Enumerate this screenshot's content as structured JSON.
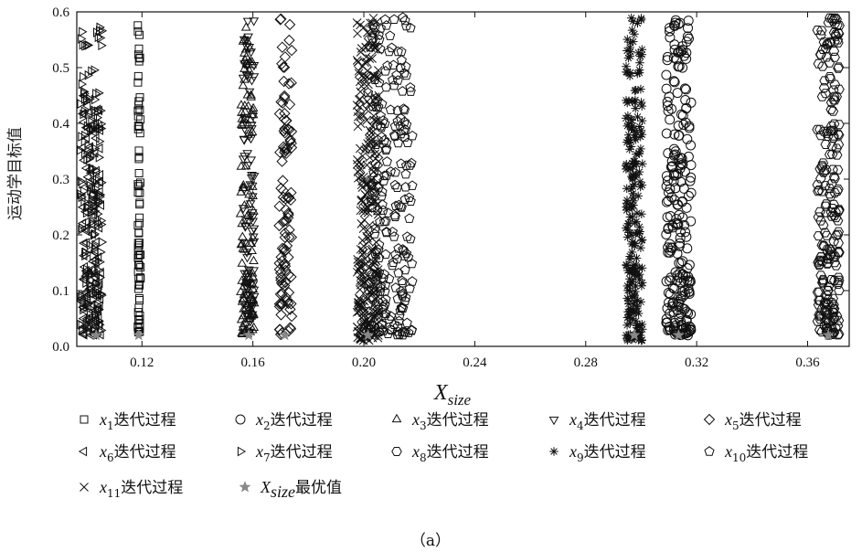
{
  "chart_data": {
    "type": "scatter",
    "title": "",
    "xlabel": {
      "main": "X",
      "sub": "size"
    },
    "ylabel": "运动学目标值",
    "xlim": [
      0.0965,
      0.375
    ],
    "ylim": [
      0,
      0.6
    ],
    "x_ticks": [
      0.12,
      0.16,
      0.2,
      0.24,
      0.28,
      0.32,
      0.36
    ],
    "x_tick_labels": [
      "0.12",
      "0.16",
      "0.20",
      "0.24",
      "0.28",
      "0.32",
      "0.36"
    ],
    "y_ticks": [
      0.0,
      0.1,
      0.2,
      0.3,
      0.4,
      0.5,
      0.6
    ],
    "y_tick_labels": [
      "0.0",
      "0.1",
      "0.2",
      "0.3",
      "0.4",
      "0.5",
      "0.6"
    ],
    "grid": false,
    "legend_placement": "bottom",
    "series": [
      {
        "name": "x1迭代过程",
        "var": "x",
        "sub": "1",
        "suffix": "迭代过程",
        "marker": "square",
        "x_range": [
          0.1185,
          0.1195
        ],
        "y_range": [
          0.02,
          0.59
        ],
        "count": 70,
        "seed": 11
      },
      {
        "name": "x2迭代过程",
        "var": "x",
        "sub": "2",
        "suffix": "迭代过程",
        "marker": "circle",
        "x_range": [
          0.309,
          0.318
        ],
        "y_range": [
          0.02,
          0.59
        ],
        "count": 230,
        "seed": 22
      },
      {
        "name": "x3迭代过程",
        "var": "x",
        "sub": "3",
        "suffix": "迭代过程",
        "marker": "triangle-up",
        "x_range": [
          0.1555,
          0.1605
        ],
        "y_range": [
          0.02,
          0.59
        ],
        "count": 110,
        "seed": 33
      },
      {
        "name": "x4迭代过程",
        "var": "x",
        "sub": "4",
        "suffix": "迭代过程",
        "marker": "triangle-down",
        "x_range": [
          0.1565,
          0.1605
        ],
        "y_range": [
          0.02,
          0.59
        ],
        "count": 90,
        "seed": 44
      },
      {
        "name": "x5迭代过程",
        "var": "x",
        "sub": "5",
        "suffix": "迭代过程",
        "marker": "diamond",
        "x_range": [
          0.1695,
          0.174
        ],
        "y_range": [
          0.02,
          0.59
        ],
        "count": 110,
        "seed": 55
      },
      {
        "name": "x6迭代过程",
        "var": "x",
        "sub": "6",
        "suffix": "迭代过程",
        "marker": "triangle-left",
        "x_range": [
          0.0985,
          0.1055
        ],
        "y_range": [
          0.02,
          0.45
        ],
        "count": 130,
        "seed": 66
      },
      {
        "name": "x7迭代过程",
        "var": "x",
        "sub": "7",
        "suffix": "迭代过程",
        "marker": "triangle-right",
        "x_range": [
          0.0975,
          0.1055
        ],
        "y_range": [
          0.02,
          0.58
        ],
        "count": 150,
        "seed": 77
      },
      {
        "name": "x8迭代过程",
        "var": "x",
        "sub": "8",
        "suffix": "迭代过程",
        "marker": "hexagon",
        "x_range": [
          0.3635,
          0.3715
        ],
        "y_range": [
          0.02,
          0.59
        ],
        "count": 230,
        "seed": 88
      },
      {
        "name": "x9迭代过程",
        "var": "x",
        "sub": "9",
        "suffix": "迭代过程",
        "marker": "asterisk",
        "x_range": [
          0.2945,
          0.3005
        ],
        "y_range": [
          0.01,
          0.59
        ],
        "count": 220,
        "seed": 99
      },
      {
        "name": "x10迭代过程",
        "var": "x",
        "sub": "10",
        "suffix": "迭代过程",
        "marker": "pentagon",
        "x_range": [
          0.2015,
          0.2175
        ],
        "y_range": [
          0.02,
          0.59
        ],
        "count": 230,
        "seed": 111
      },
      {
        "name": "x11迭代过程",
        "var": "x",
        "sub": "11",
        "suffix": "迭代过程",
        "marker": "cross",
        "x_range": [
          0.1975,
          0.2055
        ],
        "y_range": [
          0.01,
          0.59
        ],
        "count": 280,
        "seed": 122
      },
      {
        "name": "Xsize最优值",
        "var": "X",
        "sub": "size",
        "suffix": "最优值",
        "marker": "star",
        "color": "#888888",
        "points": [
          [
            0.1035,
            0.02
          ],
          [
            0.1188,
            0.02
          ],
          [
            0.1585,
            0.02
          ],
          [
            0.1715,
            0.02
          ],
          [
            0.2015,
            0.02
          ],
          [
            0.2975,
            0.02
          ],
          [
            0.3135,
            0.02
          ],
          [
            0.3675,
            0.02
          ]
        ]
      }
    ]
  },
  "caption": "（a）",
  "colors": {
    "marker": "#111111",
    "optimum": "#888888",
    "axis": "#111111"
  }
}
